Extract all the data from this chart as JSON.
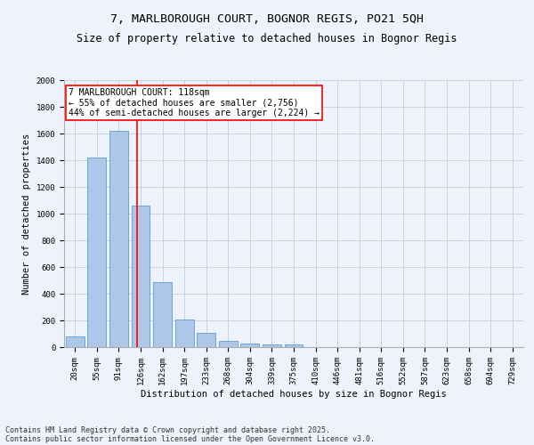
{
  "title1": "7, MARLBOROUGH COURT, BOGNOR REGIS, PO21 5QH",
  "title2": "Size of property relative to detached houses in Bognor Regis",
  "xlabel": "Distribution of detached houses by size in Bognor Regis",
  "ylabel": "Number of detached properties",
  "categories": [
    "20sqm",
    "55sqm",
    "91sqm",
    "126sqm",
    "162sqm",
    "197sqm",
    "233sqm",
    "268sqm",
    "304sqm",
    "339sqm",
    "375sqm",
    "410sqm",
    "446sqm",
    "481sqm",
    "516sqm",
    "552sqm",
    "587sqm",
    "623sqm",
    "658sqm",
    "694sqm",
    "729sqm"
  ],
  "values": [
    80,
    1420,
    1620,
    1060,
    490,
    205,
    105,
    45,
    30,
    22,
    18,
    0,
    0,
    0,
    0,
    0,
    0,
    0,
    0,
    0,
    0
  ],
  "bar_color": "#aec6e8",
  "bar_edge_color": "#5a9fd4",
  "vline_color": "red",
  "annotation_text": "7 MARLBOROUGH COURT: 118sqm\n← 55% of detached houses are smaller (2,756)\n44% of semi-detached houses are larger (2,224) →",
  "annotation_box_color": "white",
  "annotation_box_edge_color": "red",
  "ylim": [
    0,
    2000
  ],
  "yticks": [
    0,
    200,
    400,
    600,
    800,
    1000,
    1200,
    1400,
    1600,
    1800,
    2000
  ],
  "footer1": "Contains HM Land Registry data © Crown copyright and database right 2025.",
  "footer2": "Contains public sector information licensed under the Open Government Licence v3.0.",
  "bg_color": "#eef2fb",
  "grid_color": "#c8d0e8",
  "title_fontsize": 9.5,
  "subtitle_fontsize": 8.5,
  "axis_label_fontsize": 7.5,
  "tick_fontsize": 6.5,
  "annotation_fontsize": 7,
  "footer_fontsize": 6
}
